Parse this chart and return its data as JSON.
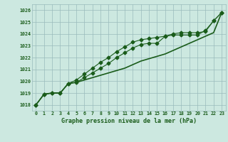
{
  "title": "Graphe pression niveau de la mer (hPa)",
  "bg_color": "#cce8e0",
  "grid_color": "#99bbbb",
  "line_color": "#1a5c1a",
  "x_labels": [
    "0",
    "1",
    "2",
    "3",
    "4",
    "5",
    "6",
    "7",
    "8",
    "9",
    "10",
    "11",
    "12",
    "13",
    "14",
    "15",
    "16",
    "17",
    "18",
    "19",
    "20",
    "21",
    "22",
    "23"
  ],
  "ylim": [
    1017.5,
    1026.5
  ],
  "xlim": [
    -0.5,
    23.5
  ],
  "yticks": [
    1018,
    1019,
    1020,
    1021,
    1022,
    1023,
    1024,
    1025,
    1026
  ],
  "series1": [
    1018.0,
    1018.9,
    1019.0,
    1019.0,
    1019.8,
    1019.9,
    1020.3,
    1020.7,
    1021.1,
    1021.5,
    1022.0,
    1022.4,
    1022.8,
    1023.1,
    1023.2,
    1023.2,
    1023.8,
    1023.9,
    1023.9,
    1023.9,
    1023.9,
    1024.3,
    1025.1,
    1025.8
  ],
  "series2": [
    1018.0,
    1018.9,
    1019.0,
    1019.0,
    1019.8,
    1020.1,
    1020.6,
    1021.1,
    1021.6,
    1022.0,
    1022.5,
    1022.9,
    1023.3,
    1023.5,
    1023.6,
    1023.7,
    1023.8,
    1024.0,
    1024.1,
    1024.1,
    1024.1,
    1024.2,
    1025.1,
    1025.8
  ],
  "series3": [
    1018.0,
    1018.9,
    1019.0,
    1019.0,
    1019.8,
    1019.9,
    1020.1,
    1020.3,
    1020.5,
    1020.7,
    1020.9,
    1021.1,
    1021.4,
    1021.7,
    1021.9,
    1022.1,
    1022.3,
    1022.6,
    1022.9,
    1023.2,
    1023.5,
    1023.8,
    1024.1,
    1025.8
  ]
}
